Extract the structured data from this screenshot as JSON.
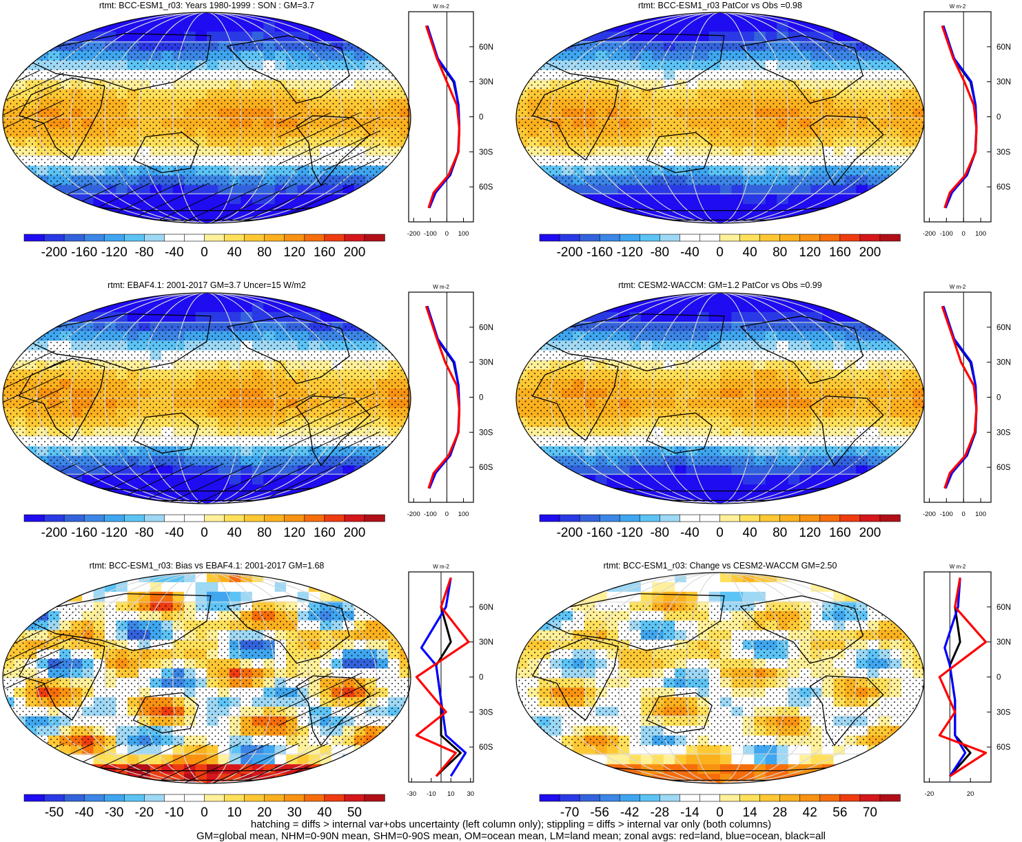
{
  "chart_data": [
    {
      "type": "heatmap",
      "title": "rtmt: BCC-ESM1_r03: Years 1980-1999 : SON : GM=3.7",
      "colorbar": {
        "ticks": [
          "-200",
          "-160",
          "-120",
          "-80",
          "-40",
          "0",
          "40",
          "80",
          "120",
          "160",
          "200"
        ],
        "range": [
          -220,
          220
        ]
      },
      "field": {
        "kind": "climo",
        "amp": 1.0,
        "seed": 0
      },
      "hatching": true,
      "stippling": true,
      "zonal": {
        "xticks": [
          "-200",
          "-100",
          "0",
          "100"
        ],
        "xlim": [
          -230,
          160
        ],
        "ylabels": [
          "60N",
          "30N",
          "0",
          "30S",
          "60S"
        ],
        "unit": "W m-2",
        "series": [
          {
            "name": "all",
            "color": "#000000",
            "points": [
              [
                -120,
                78
              ],
              [
                -60,
                50
              ],
              [
                40,
                30
              ],
              [
                70,
                10
              ],
              [
                75,
                -10
              ],
              [
                70,
                -30
              ],
              [
                20,
                -50
              ],
              [
                -70,
                -65
              ],
              [
                -110,
                -78
              ]
            ]
          },
          {
            "name": "ocean",
            "color": "#0000ff",
            "points": [
              [
                -118,
                78
              ],
              [
                -55,
                50
              ],
              [
                45,
                30
              ],
              [
                70,
                10
              ],
              [
                75,
                -10
              ],
              [
                68,
                -30
              ],
              [
                18,
                -50
              ],
              [
                -68,
                -65
              ],
              [
                -105,
                -78
              ]
            ]
          },
          {
            "name": "land",
            "color": "#ff0000",
            "points": [
              [
                -125,
                78
              ],
              [
                -60,
                50
              ],
              [
                0,
                30
              ],
              [
                60,
                10
              ],
              [
                75,
                -10
              ],
              [
                70,
                -30
              ],
              [
                10,
                -50
              ],
              [
                -80,
                -65
              ],
              [
                -110,
                -78
              ]
            ]
          }
        ]
      }
    },
    {
      "type": "heatmap",
      "title": "rtmt: BCC-ESM1_r03 PatCor vs Obs =0.98",
      "colorbar": {
        "ticks": [
          "-200",
          "-160",
          "-120",
          "-80",
          "-40",
          "0",
          "40",
          "80",
          "120",
          "160",
          "200"
        ],
        "range": [
          -220,
          220
        ]
      },
      "field": {
        "kind": "climo",
        "amp": 1.0,
        "seed": 1
      },
      "hatching": false,
      "stippling": true,
      "zonal": {
        "xticks": [
          "-200",
          "-100",
          "0",
          "100"
        ],
        "xlim": [
          -230,
          160
        ],
        "ylabels": [
          "60N",
          "30N",
          "0",
          "30S",
          "60S"
        ],
        "unit": "W m-2",
        "series": [
          {
            "name": "all",
            "color": "#000000",
            "points": [
              [
                -120,
                78
              ],
              [
                -60,
                50
              ],
              [
                40,
                30
              ],
              [
                70,
                10
              ],
              [
                75,
                -10
              ],
              [
                70,
                -30
              ],
              [
                20,
                -50
              ],
              [
                -70,
                -65
              ],
              [
                -110,
                -78
              ]
            ]
          },
          {
            "name": "ocean",
            "color": "#0000ff",
            "points": [
              [
                -118,
                78
              ],
              [
                -55,
                50
              ],
              [
                45,
                30
              ],
              [
                70,
                10
              ],
              [
                75,
                -10
              ],
              [
                68,
                -30
              ],
              [
                18,
                -50
              ],
              [
                -68,
                -65
              ],
              [
                -105,
                -78
              ]
            ]
          },
          {
            "name": "land",
            "color": "#ff0000",
            "points": [
              [
                -125,
                78
              ],
              [
                -60,
                50
              ],
              [
                5,
                30
              ],
              [
                60,
                10
              ],
              [
                75,
                -10
              ],
              [
                70,
                -30
              ],
              [
                10,
                -50
              ],
              [
                -80,
                -65
              ],
              [
                -110,
                -78
              ]
            ]
          }
        ]
      }
    },
    {
      "type": "heatmap",
      "title": "rtmt: EBAF4.1: 2001-2017 GM=3.7 Uncer=15 W/m2",
      "colorbar": {
        "ticks": [
          "-200",
          "-160",
          "-120",
          "-80",
          "-40",
          "0",
          "40",
          "80",
          "120",
          "160",
          "200"
        ],
        "range": [
          -220,
          220
        ]
      },
      "field": {
        "kind": "climo",
        "amp": 1.0,
        "seed": 2
      },
      "hatching": true,
      "stippling": true,
      "zonal": {
        "xticks": [
          "-200",
          "-100",
          "0",
          "100"
        ],
        "xlim": [
          -230,
          160
        ],
        "ylabels": [
          "60N",
          "30N",
          "0",
          "30S",
          "60S"
        ],
        "unit": "W m-2",
        "series": [
          {
            "name": "all",
            "color": "#000000",
            "points": [
              [
                -120,
                78
              ],
              [
                -60,
                50
              ],
              [
                40,
                30
              ],
              [
                70,
                10
              ],
              [
                75,
                -10
              ],
              [
                70,
                -30
              ],
              [
                20,
                -50
              ],
              [
                -70,
                -65
              ],
              [
                -110,
                -78
              ]
            ]
          },
          {
            "name": "ocean",
            "color": "#0000ff",
            "points": [
              [
                -118,
                78
              ],
              [
                -55,
                50
              ],
              [
                45,
                30
              ],
              [
                70,
                10
              ],
              [
                75,
                -10
              ],
              [
                68,
                -30
              ],
              [
                18,
                -50
              ],
              [
                -68,
                -65
              ],
              [
                -105,
                -78
              ]
            ]
          },
          {
            "name": "land",
            "color": "#ff0000",
            "points": [
              [
                -125,
                78
              ],
              [
                -60,
                50
              ],
              [
                -10,
                30
              ],
              [
                60,
                10
              ],
              [
                75,
                -10
              ],
              [
                70,
                -30
              ],
              [
                10,
                -50
              ],
              [
                -80,
                -65
              ],
              [
                -110,
                -78
              ]
            ]
          }
        ]
      }
    },
    {
      "type": "heatmap",
      "title": "rtmt: CESM2-WACCM: GM=1.2 PatCor vs Obs =0.99",
      "colorbar": {
        "ticks": [
          "-200",
          "-160",
          "-120",
          "-80",
          "-40",
          "0",
          "40",
          "80",
          "120",
          "160",
          "200"
        ],
        "range": [
          -220,
          220
        ]
      },
      "field": {
        "kind": "climo",
        "amp": 1.0,
        "seed": 3
      },
      "hatching": false,
      "stippling": true,
      "zonal": {
        "xticks": [
          "-200",
          "-100",
          "0",
          "100"
        ],
        "xlim": [
          -230,
          160
        ],
        "ylabels": [
          "60N",
          "30N",
          "0",
          "30S",
          "60S"
        ],
        "unit": "W m-2",
        "series": [
          {
            "name": "all",
            "color": "#000000",
            "points": [
              [
                -120,
                78
              ],
              [
                -60,
                50
              ],
              [
                40,
                30
              ],
              [
                70,
                10
              ],
              [
                75,
                -10
              ],
              [
                70,
                -30
              ],
              [
                20,
                -50
              ],
              [
                -70,
                -65
              ],
              [
                -110,
                -78
              ]
            ]
          },
          {
            "name": "ocean",
            "color": "#0000ff",
            "points": [
              [
                -118,
                78
              ],
              [
                -55,
                50
              ],
              [
                45,
                30
              ],
              [
                70,
                10
              ],
              [
                75,
                -10
              ],
              [
                68,
                -30
              ],
              [
                18,
                -50
              ],
              [
                -68,
                -65
              ],
              [
                -105,
                -78
              ]
            ]
          },
          {
            "name": "land",
            "color": "#ff0000",
            "points": [
              [
                -125,
                78
              ],
              [
                -60,
                50
              ],
              [
                -15,
                30
              ],
              [
                60,
                10
              ],
              [
                75,
                -10
              ],
              [
                65,
                -30
              ],
              [
                10,
                -50
              ],
              [
                -80,
                -65
              ],
              [
                -110,
                -78
              ]
            ]
          }
        ]
      }
    },
    {
      "type": "heatmap",
      "title": "rtmt: BCC-ESM1_r03: Bias vs EBAF4.1: 2001-2017  GM=1.68",
      "colorbar": {
        "ticks": [
          "-50",
          "-40",
          "-30",
          "-20",
          "-10",
          "0",
          "10",
          "20",
          "30",
          "40",
          "50"
        ],
        "range": [
          -55,
          55
        ]
      },
      "field": {
        "kind": "diff",
        "amp": 1.0,
        "seed": 4
      },
      "hatching": true,
      "stippling": true,
      "zonal": {
        "xticks": [
          "-30",
          "-10",
          "10",
          "30"
        ],
        "xlim": [
          -33,
          33
        ],
        "ylabels": [
          "60N",
          "30N",
          "0",
          "30S",
          "60S"
        ],
        "unit": "W m-2",
        "series": [
          {
            "name": "all",
            "color": "#000000",
            "points": [
              [
                10,
                85
              ],
              [
                0,
                60
              ],
              [
                10,
                30
              ],
              [
                -5,
                10
              ],
              [
                0,
                -20
              ],
              [
                0,
                -50
              ],
              [
                20,
                -65
              ],
              [
                -5,
                -85
              ]
            ]
          },
          {
            "name": "ocean",
            "color": "#0000ff",
            "points": [
              [
                10,
                85
              ],
              [
                5,
                60
              ],
              [
                -20,
                25
              ],
              [
                -5,
                10
              ],
              [
                0,
                -20
              ],
              [
                5,
                -50
              ],
              [
                25,
                -65
              ],
              [
                10,
                -85
              ]
            ]
          },
          {
            "name": "land",
            "color": "#ff0000",
            "points": [
              [
                10,
                85
              ],
              [
                0,
                60
              ],
              [
                28,
                30
              ],
              [
                -25,
                0
              ],
              [
                5,
                -30
              ],
              [
                -25,
                -50
              ],
              [
                15,
                -65
              ],
              [
                -5,
                -85
              ]
            ]
          }
        ]
      }
    },
    {
      "type": "heatmap",
      "title": "rtmt: BCC-ESM1_r03: Change vs CESM2-WACCM GM=2.50",
      "colorbar": {
        "ticks": [
          "-70",
          "-56",
          "-42",
          "-28",
          "-14",
          "0",
          "14",
          "28",
          "42",
          "56",
          "70"
        ],
        "range": [
          -77,
          77
        ]
      },
      "field": {
        "kind": "diff",
        "amp": 1.0,
        "seed": 5
      },
      "hatching": false,
      "stippling": true,
      "zonal": {
        "xticks": [
          "-20",
          "20"
        ],
        "xlim": [
          -25,
          40
        ],
        "ylabels": [
          "60N",
          "30N",
          "0",
          "30S",
          "60S"
        ],
        "unit": "W m-2",
        "series": [
          {
            "name": "all",
            "color": "#000000",
            "points": [
              [
                10,
                85
              ],
              [
                5,
                60
              ],
              [
                10,
                30
              ],
              [
                0,
                10
              ],
              [
                5,
                -20
              ],
              [
                5,
                -50
              ],
              [
                20,
                -65
              ],
              [
                0,
                -85
              ]
            ]
          },
          {
            "name": "ocean",
            "color": "#0000ff",
            "points": [
              [
                10,
                85
              ],
              [
                8,
                60
              ],
              [
                -5,
                25
              ],
              [
                0,
                10
              ],
              [
                5,
                -20
              ],
              [
                5,
                -50
              ],
              [
                15,
                -65
              ],
              [
                0,
                -85
              ]
            ]
          },
          {
            "name": "land",
            "color": "#ff0000",
            "points": [
              [
                10,
                85
              ],
              [
                5,
                60
              ],
              [
                35,
                30
              ],
              [
                -10,
                0
              ],
              [
                5,
                -30
              ],
              [
                -10,
                -50
              ],
              [
                35,
                -65
              ],
              [
                0,
                -85
              ]
            ]
          }
        ]
      }
    }
  ],
  "footer": {
    "line1": "hatching = diffs > internal var+obs uncertainty (left column only); stippling = diffs > internal var only (both columns)",
    "line2": "GM=global mean, NHM=0-90N mean, SHM=0-90S mean, OM=ocean mean, LM=land mean; zonal avgs: red=land, blue=ocean, black=all"
  }
}
